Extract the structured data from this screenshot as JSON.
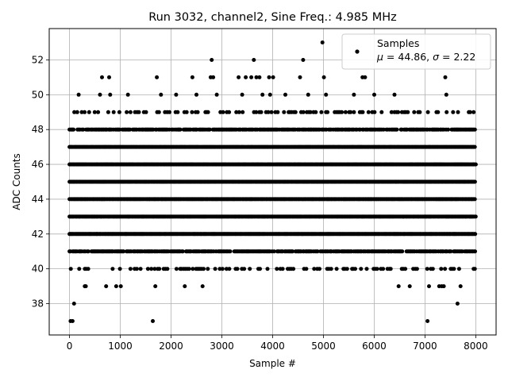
{
  "chart_data": {
    "type": "scatter",
    "title": "Run 3032, channel2, Sine Freq.: 4.985 MHz",
    "xlabel": "Sample #",
    "ylabel": "ADC Counts",
    "xlim": [
      -400,
      8400
    ],
    "ylim": [
      36.2,
      53.8
    ],
    "xticks": [
      0,
      1000,
      2000,
      3000,
      4000,
      5000,
      6000,
      7000,
      8000
    ],
    "yticks": [
      38,
      40,
      42,
      44,
      46,
      48,
      50,
      52
    ],
    "grid": true,
    "legend": {
      "placement": "top-right",
      "series_name": "Samples",
      "stats_mu_label": "μ",
      "stats_mu_value": "44.86",
      "stats_sigma_label": "σ",
      "stats_sigma_value": "2.22"
    },
    "marker_color": "#000000",
    "series": [
      {
        "name": "Samples",
        "n_samples": 8000,
        "dense_levels": [
          41,
          42,
          43,
          44,
          45,
          46,
          47,
          48
        ],
        "medium_levels": [
          40,
          49
        ],
        "x_range": [
          0,
          8000
        ],
        "sparse_points": [
          {
            "x": 20,
            "y": 37
          },
          {
            "x": 60,
            "y": 37
          },
          {
            "x": 90,
            "y": 38
          },
          {
            "x": 1640,
            "y": 37
          },
          {
            "x": 7050,
            "y": 37
          },
          {
            "x": 7640,
            "y": 38
          },
          {
            "x": 300,
            "y": 39
          },
          {
            "x": 320,
            "y": 39
          },
          {
            "x": 720,
            "y": 39
          },
          {
            "x": 920,
            "y": 39
          },
          {
            "x": 1010,
            "y": 39
          },
          {
            "x": 1690,
            "y": 39
          },
          {
            "x": 2270,
            "y": 39
          },
          {
            "x": 2620,
            "y": 39
          },
          {
            "x": 6480,
            "y": 39
          },
          {
            "x": 6700,
            "y": 39
          },
          {
            "x": 7080,
            "y": 39
          },
          {
            "x": 7280,
            "y": 39
          },
          {
            "x": 7330,
            "y": 39
          },
          {
            "x": 7370,
            "y": 39
          },
          {
            "x": 7700,
            "y": 39
          },
          {
            "x": 180,
            "y": 50
          },
          {
            "x": 600,
            "y": 50
          },
          {
            "x": 800,
            "y": 50
          },
          {
            "x": 1150,
            "y": 50
          },
          {
            "x": 1800,
            "y": 50
          },
          {
            "x": 2100,
            "y": 50
          },
          {
            "x": 2500,
            "y": 50
          },
          {
            "x": 2900,
            "y": 50
          },
          {
            "x": 3400,
            "y": 50
          },
          {
            "x": 3800,
            "y": 50
          },
          {
            "x": 3950,
            "y": 50
          },
          {
            "x": 4250,
            "y": 50
          },
          {
            "x": 4700,
            "y": 50
          },
          {
            "x": 5050,
            "y": 50
          },
          {
            "x": 5600,
            "y": 50
          },
          {
            "x": 6000,
            "y": 50
          },
          {
            "x": 6400,
            "y": 50
          },
          {
            "x": 7420,
            "y": 50
          },
          {
            "x": 640,
            "y": 51
          },
          {
            "x": 780,
            "y": 51
          },
          {
            "x": 1720,
            "y": 51
          },
          {
            "x": 2420,
            "y": 51
          },
          {
            "x": 2780,
            "y": 51
          },
          {
            "x": 2830,
            "y": 51
          },
          {
            "x": 3330,
            "y": 51
          },
          {
            "x": 3470,
            "y": 51
          },
          {
            "x": 3580,
            "y": 51
          },
          {
            "x": 3680,
            "y": 51
          },
          {
            "x": 3740,
            "y": 51
          },
          {
            "x": 3930,
            "y": 51
          },
          {
            "x": 4010,
            "y": 51
          },
          {
            "x": 4540,
            "y": 51
          },
          {
            "x": 5010,
            "y": 51
          },
          {
            "x": 5770,
            "y": 51
          },
          {
            "x": 5820,
            "y": 51
          },
          {
            "x": 7400,
            "y": 51
          },
          {
            "x": 2800,
            "y": 52
          },
          {
            "x": 3630,
            "y": 52
          },
          {
            "x": 4600,
            "y": 52
          },
          {
            "x": 4980,
            "y": 53
          }
        ]
      }
    ]
  }
}
